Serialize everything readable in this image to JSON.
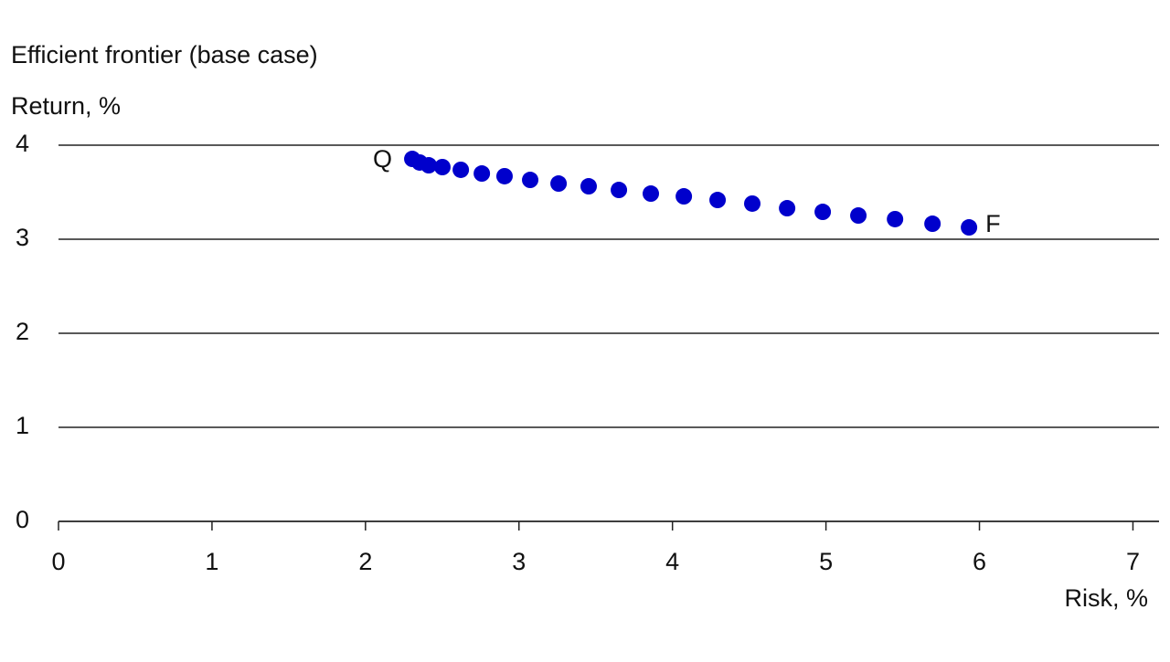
{
  "chart_data": {
    "type": "scatter",
    "title": "Efficient frontier (base case)",
    "y_label": "Return, %",
    "x_label": "Risk, %",
    "series": [
      {
        "name": "Efficient frontier",
        "color": "#0000cc",
        "x": [
          2.305,
          2.353,
          2.412,
          2.501,
          2.621,
          2.758,
          2.906,
          3.073,
          3.258,
          3.454,
          3.651,
          3.859,
          4.074,
          4.294,
          4.52,
          4.747,
          4.979,
          5.211,
          5.45,
          5.694,
          5.932
        ],
        "values": [
          3.854,
          3.816,
          3.786,
          3.767,
          3.738,
          3.699,
          3.67,
          3.631,
          3.592,
          3.563,
          3.524,
          3.485,
          3.456,
          3.417,
          3.379,
          3.33,
          3.291,
          3.252,
          3.214,
          3.165,
          3.126
        ]
      }
    ],
    "annotations": [
      "Q",
      "F"
    ],
    "xlim": [
      0,
      7.17
    ],
    "xticks": [
      0,
      1,
      2,
      3,
      4,
      5,
      6,
      7
    ],
    "ylim": [
      0,
      4
    ],
    "yticks": [
      0,
      1,
      2,
      3,
      4
    ],
    "grid": true
  }
}
